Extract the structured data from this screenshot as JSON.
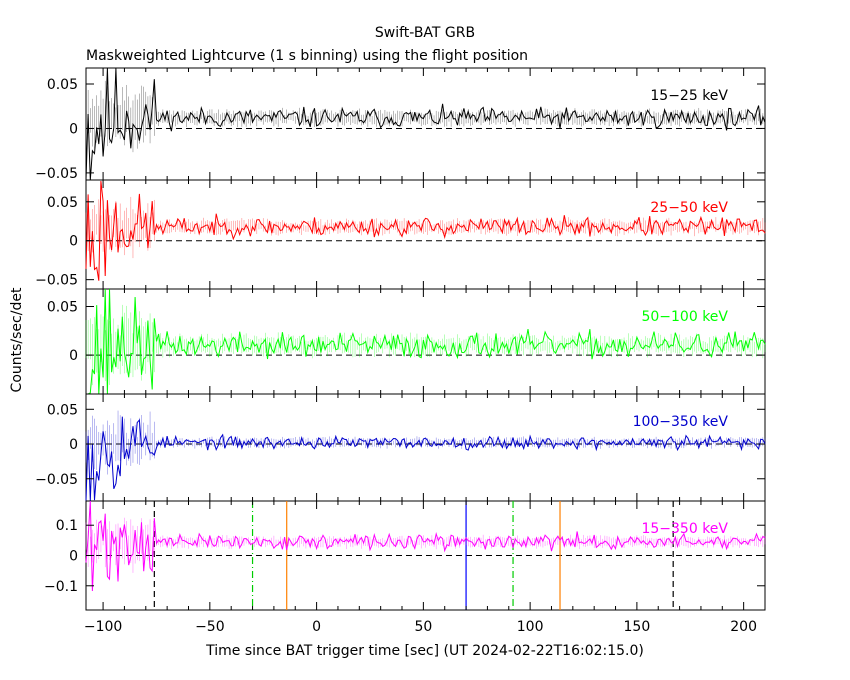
{
  "chart_data": {
    "type": "line",
    "title": "Swift-BAT GRB",
    "subtitle": "Maskweighted Lightcurve (1 s binning) using the flight position",
    "xlabel": "Time since BAT trigger time [sec] (UT 2024-02-22T16:02:15.0)",
    "ylabel": "Counts/sec/det",
    "xlim": [
      -108,
      210
    ],
    "x_ticks": [
      {
        "value": -100,
        "label": "−100"
      },
      {
        "value": -50,
        "label": "−50"
      },
      {
        "value": 0,
        "label": "0"
      },
      {
        "value": 50,
        "label": "50"
      },
      {
        "value": 100,
        "label": "100"
      },
      {
        "value": 150,
        "label": "150"
      },
      {
        "value": 200,
        "label": "200"
      }
    ],
    "panels": [
      {
        "name": "15-25 keV",
        "label": "15−25 keV",
        "color": "#000000",
        "ylim": [
          -0.058,
          0.068
        ],
        "y_ticks": [
          {
            "value": 0.05,
            "label": "0.05"
          },
          {
            "value": 0,
            "label": "0"
          },
          {
            "value": -0.05,
            "label": "−0.05"
          }
        ],
        "baseline": 0.012,
        "noise_late": 0.0055,
        "noise_early": 0.022,
        "seed": 11,
        "vlines": []
      },
      {
        "name": "25-50 keV",
        "label": "25−50 keV",
        "color": "#ff0000",
        "ylim": [
          -0.062,
          0.078
        ],
        "y_ticks": [
          {
            "value": 0.05,
            "label": "0.05"
          },
          {
            "value": 0,
            "label": "0"
          },
          {
            "value": -0.05,
            "label": "−0.05"
          }
        ],
        "baseline": 0.018,
        "noise_late": 0.006,
        "noise_early": 0.02,
        "seed": 23,
        "vlines": []
      },
      {
        "name": "50-100 keV",
        "label": "50−100 keV",
        "color": "#00ff00",
        "ylim": [
          -0.04,
          0.068
        ],
        "y_ticks": [
          {
            "value": 0.05,
            "label": "0.05"
          },
          {
            "value": 0,
            "label": "0"
          }
        ],
        "baseline": 0.01,
        "noise_late": 0.0065,
        "noise_early": 0.022,
        "seed": 37,
        "vlines": []
      },
      {
        "name": "100-350 keV",
        "label": "100−350 keV",
        "color": "#0000cc",
        "ylim": [
          -0.082,
          0.072
        ],
        "y_ticks": [
          {
            "value": 0.05,
            "label": "0.05"
          },
          {
            "value": 0,
            "label": "0"
          },
          {
            "value": -0.05,
            "label": "−0.05"
          }
        ],
        "baseline": 0.002,
        "noise_late": 0.0045,
        "noise_early": 0.025,
        "seed": 53,
        "vlines": []
      },
      {
        "name": "15-350 keV",
        "label": "15−350 keV",
        "color": "#ff00ff",
        "ylim": [
          -0.18,
          0.18
        ],
        "y_ticks": [
          {
            "value": 0.1,
            "label": "0.1"
          },
          {
            "value": 0,
            "label": "0"
          },
          {
            "value": -0.1,
            "label": "−0.1"
          }
        ],
        "baseline": 0.045,
        "noise_late": 0.012,
        "noise_early": 0.05,
        "seed": 71,
        "vlines": [
          {
            "x": -76,
            "color": "#000000",
            "style": "dash"
          },
          {
            "x": -30,
            "color": "#00cc00",
            "style": "dashdot"
          },
          {
            "x": -14,
            "color": "#ff8000",
            "style": "solid"
          },
          {
            "x": 70,
            "color": "#0000ff",
            "style": "solid"
          },
          {
            "x": 92,
            "color": "#00cc00",
            "style": "dashdot"
          },
          {
            "x": 114,
            "color": "#ff8000",
            "style": "solid"
          },
          {
            "x": 167,
            "color": "#000000",
            "style": "dash"
          }
        ]
      }
    ]
  }
}
